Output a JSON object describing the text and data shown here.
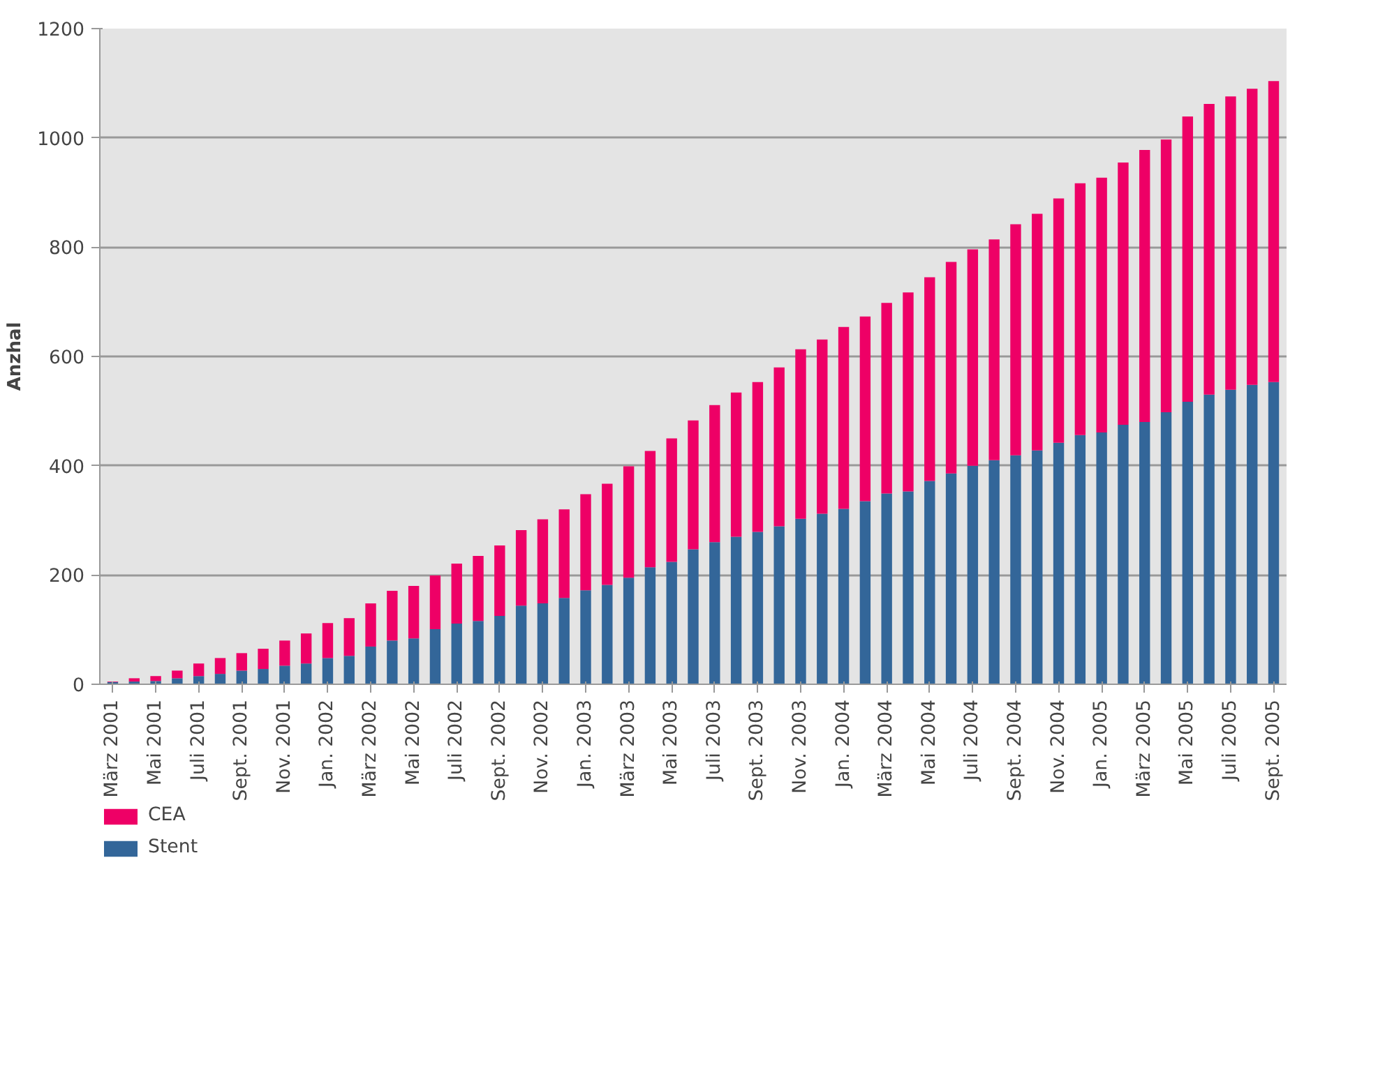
{
  "chart_data": {
    "type": "bar",
    "stacked": true,
    "ylabel": "Anzhal",
    "categories": [
      "März 2001",
      null,
      "Mai 2001",
      null,
      "Juli 2001",
      null,
      "Sept. 2001",
      null,
      "Nov. 2001",
      null,
      "Jan. 2002",
      null,
      "März 2002",
      null,
      "Mai 2002",
      null,
      "Juli 2002",
      null,
      "Sept. 2002",
      null,
      "Nov. 2002",
      null,
      "Jan. 2003",
      null,
      "März 2003",
      null,
      "Mai 2003",
      null,
      "Juli 2003",
      null,
      "Sept. 2003",
      null,
      "Nov. 2003",
      null,
      "Jan. 2004",
      null,
      "März 2004",
      null,
      "Mai 2004",
      null,
      "Juli 2004",
      null,
      "Sept. 2004",
      null,
      "Nov. 2004",
      null,
      "Jan. 2005",
      null,
      "März 2005",
      null,
      "Mai 2005",
      null,
      "Juli 2005",
      null,
      "Sept. 2005"
    ],
    "series": [
      {
        "name": "Stent",
        "color": "#336699",
        "values": [
          4,
          5,
          6,
          11,
          15,
          19,
          25,
          28,
          34,
          38,
          48,
          52,
          69,
          80,
          84,
          101,
          111,
          116,
          125,
          144,
          148,
          158,
          172,
          182,
          195,
          214,
          224,
          247,
          260,
          270,
          279,
          289,
          303,
          312,
          321,
          335,
          349,
          353,
          372,
          386,
          400,
          410,
          419,
          428,
          442,
          456,
          461,
          475,
          480,
          498,
          517,
          530,
          539,
          548,
          553
        ]
      },
      {
        "name": "CEA",
        "color": "#ee0066",
        "values": [
          1,
          6,
          9,
          14,
          23,
          29,
          32,
          37,
          46,
          55,
          64,
          69,
          79,
          91,
          96,
          98,
          110,
          119,
          129,
          138,
          154,
          162,
          176,
          185,
          204,
          213,
          226,
          236,
          251,
          264,
          274,
          291,
          310,
          319,
          333,
          338,
          349,
          364,
          373,
          387,
          396,
          404,
          423,
          433,
          447,
          461,
          466,
          480,
          498,
          499,
          522,
          532,
          537,
          542,
          551
        ]
      }
    ],
    "ylim": [
      0,
      1200
    ],
    "yticks": [
      0,
      200,
      400,
      600,
      800,
      1000,
      1200
    ],
    "grid": "y",
    "legend": "bottom"
  }
}
